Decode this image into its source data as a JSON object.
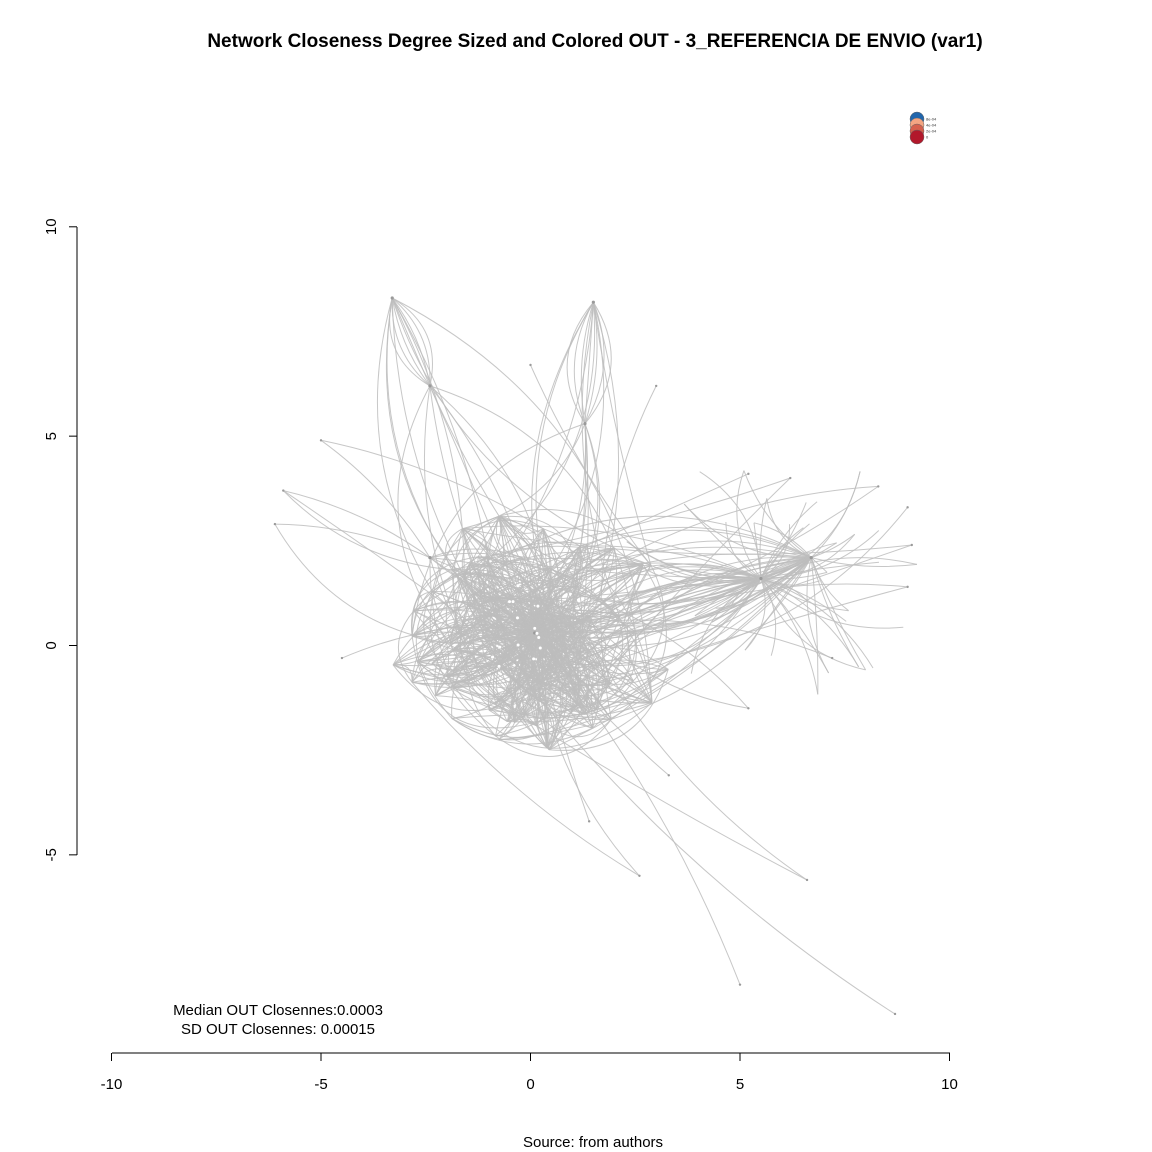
{
  "title": "Network Closeness Degree Sized and Colored OUT - 3_REFERENCIA DE ENVIO (var1)",
  "source": "Source: from authors",
  "stats": {
    "median": "Median OUT Closennes:0.0003",
    "sd": "SD OUT Closennes: 0.00015"
  },
  "legend": {
    "items": [
      {
        "label": "8e-04",
        "color": "#2166ac"
      },
      {
        "label": "4e-04",
        "color": "#f4a582"
      },
      {
        "label": "2e-04",
        "color": "#d6604d"
      },
      {
        "label": "0",
        "color": "#b2182b"
      }
    ]
  },
  "colors": {
    "edge": "#bdbdbd",
    "node": "#9a9a9a",
    "axis": "#000000"
  },
  "axes": {
    "x": {
      "ticks": [
        "-10",
        "-5",
        "0",
        "5",
        "10"
      ],
      "range": [
        -10,
        10
      ]
    },
    "y": {
      "ticks": [
        "10",
        "5",
        "0",
        "-5"
      ],
      "range": [
        -5,
        10
      ]
    }
  },
  "chart_data": {
    "type": "network",
    "title": "Network Closeness Degree Sized and Colored OUT - 3_REFERENCIA DE ENVIO (var1)",
    "xlim": [
      -10,
      10
    ],
    "ylim": [
      -5,
      10
    ],
    "xticks": [
      -10,
      -5,
      0,
      5,
      10
    ],
    "yticks": [
      10,
      5,
      0,
      -5
    ],
    "hubs": [
      {
        "x": 0.1,
        "y": 0.3
      },
      {
        "x": 5.5,
        "y": 1.6
      },
      {
        "x": 6.7,
        "y": 2.1
      },
      {
        "x": -2.4,
        "y": 2.1
      },
      {
        "x": 1.3,
        "y": 5.3
      },
      {
        "x": -2.4,
        "y": 6.2
      },
      {
        "x": 1.5,
        "y": 8.2
      },
      {
        "x": -3.3,
        "y": 8.3
      }
    ],
    "peripheral_nodes": [
      {
        "x": -4.5,
        "y": -0.3
      },
      {
        "x": 3.3,
        "y": -3.1
      },
      {
        "x": 1.4,
        "y": -4.2
      },
      {
        "x": 2.6,
        "y": -5.5
      },
      {
        "x": 6.6,
        "y": -5.6
      },
      {
        "x": 5.0,
        "y": -8.1
      },
      {
        "x": 8.7,
        "y": -8.8
      },
      {
        "x": 8.3,
        "y": 3.8
      },
      {
        "x": 9.0,
        "y": 3.3
      },
      {
        "x": 9.1,
        "y": 2.4
      },
      {
        "x": 9.0,
        "y": 1.4
      },
      {
        "x": 0.0,
        "y": 6.7
      },
      {
        "x": 3.0,
        "y": 6.2
      },
      {
        "x": -5.0,
        "y": 4.9
      },
      {
        "x": -5.9,
        "y": 3.7
      },
      {
        "x": -6.1,
        "y": 2.9
      },
      {
        "x": 5.2,
        "y": 4.1
      },
      {
        "x": 6.2,
        "y": 4.0
      },
      {
        "x": 5.2,
        "y": -1.5
      },
      {
        "x": 7.2,
        "y": -0.3
      }
    ],
    "legend": [
      "8e-04",
      "4e-04",
      "2e-04",
      "0"
    ]
  }
}
